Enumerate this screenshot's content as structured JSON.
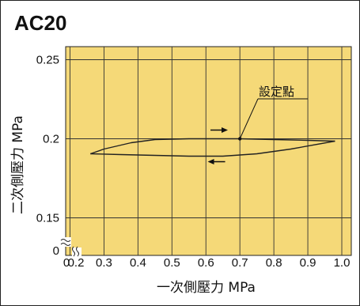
{
  "chart_data": {
    "type": "line",
    "title": "AC20",
    "xlabel": "一次側壓力 MPa",
    "ylabel": "二次側壓力 MPa",
    "x_ticks": [
      "0",
      "0.2",
      "0.3",
      "0.4",
      "0.5",
      "0.6",
      "0.7",
      "0.8",
      "0.9",
      "1.0"
    ],
    "y_ticks": [
      "0.15",
      "0.2",
      "0.25"
    ],
    "y_zero_tick": "0",
    "xlim": [
      0.2,
      1.0
    ],
    "ylim": [
      0.14,
      0.26
    ],
    "grid": true,
    "background_color": "#f5d978",
    "line_color": "#222222",
    "annotation": {
      "text": "設定點",
      "x": 0.7,
      "y": 0.2
    },
    "series": [
      {
        "values": [
          {
            "x": 0.26,
            "y": 0.1905
          },
          {
            "x": 0.3,
            "y": 0.1935
          },
          {
            "x": 0.38,
            "y": 0.1975
          },
          {
            "x": 0.45,
            "y": 0.1995
          },
          {
            "x": 0.55,
            "y": 0.2
          },
          {
            "x": 0.65,
            "y": 0.2
          },
          {
            "x": 0.7,
            "y": 0.2
          },
          {
            "x": 0.8,
            "y": 0.1995
          },
          {
            "x": 0.9,
            "y": 0.199
          },
          {
            "x": 0.98,
            "y": 0.1985
          }
        ]
      },
      {
        "values": [
          {
            "x": 0.98,
            "y": 0.1985
          },
          {
            "x": 0.85,
            "y": 0.1935
          },
          {
            "x": 0.75,
            "y": 0.1905
          },
          {
            "x": 0.65,
            "y": 0.189
          },
          {
            "x": 0.55,
            "y": 0.189
          },
          {
            "x": 0.45,
            "y": 0.1895
          },
          {
            "x": 0.35,
            "y": 0.19
          },
          {
            "x": 0.26,
            "y": 0.1905
          }
        ]
      }
    ],
    "arrows": [
      {
        "direction": "right",
        "x": 0.66,
        "y": 0.2055
      },
      {
        "direction": "left",
        "x": 0.61,
        "y": 0.1855
      }
    ]
  }
}
